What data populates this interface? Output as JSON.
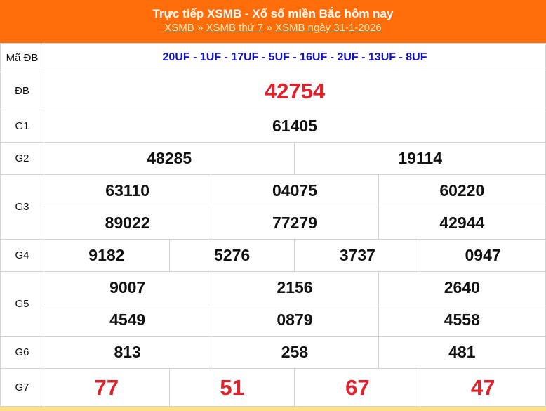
{
  "header": {
    "title": "Trực tiếp XSMB - Xổ số miền Bắc hôm nay",
    "breadcrumb": [
      "XSMB",
      "XSMB thứ 7",
      "XSMB ngày 31-1-2026"
    ],
    "separator": "»"
  },
  "colors": {
    "header": "#ff6d0a",
    "special": "#e2202a",
    "code": "#1010c8"
  },
  "rows": {
    "madb": {
      "label": "Mã ĐB",
      "value": "20UF - 1UF - 17UF - 5UF - 16UF - 2UF - 13UF - 8UF"
    },
    "db": {
      "label": "ĐB",
      "values": [
        "42754"
      ]
    },
    "g1": {
      "label": "G1",
      "values": [
        "61405"
      ]
    },
    "g2": {
      "label": "G2",
      "values": [
        "48285",
        "19114"
      ]
    },
    "g3": {
      "label": "G3",
      "values": [
        "63110",
        "04075",
        "60220",
        "89022",
        "77279",
        "42944"
      ]
    },
    "g4": {
      "label": "G4",
      "values": [
        "9182",
        "5276",
        "3737",
        "0947"
      ]
    },
    "g5": {
      "label": "G5",
      "values": [
        "9007",
        "2156",
        "2640",
        "4549",
        "0879",
        "4558"
      ]
    },
    "g6": {
      "label": "G6",
      "values": [
        "813",
        "258",
        "481"
      ]
    },
    "g7": {
      "label": "G7",
      "values": [
        "77",
        "51",
        "67",
        "47"
      ]
    }
  }
}
